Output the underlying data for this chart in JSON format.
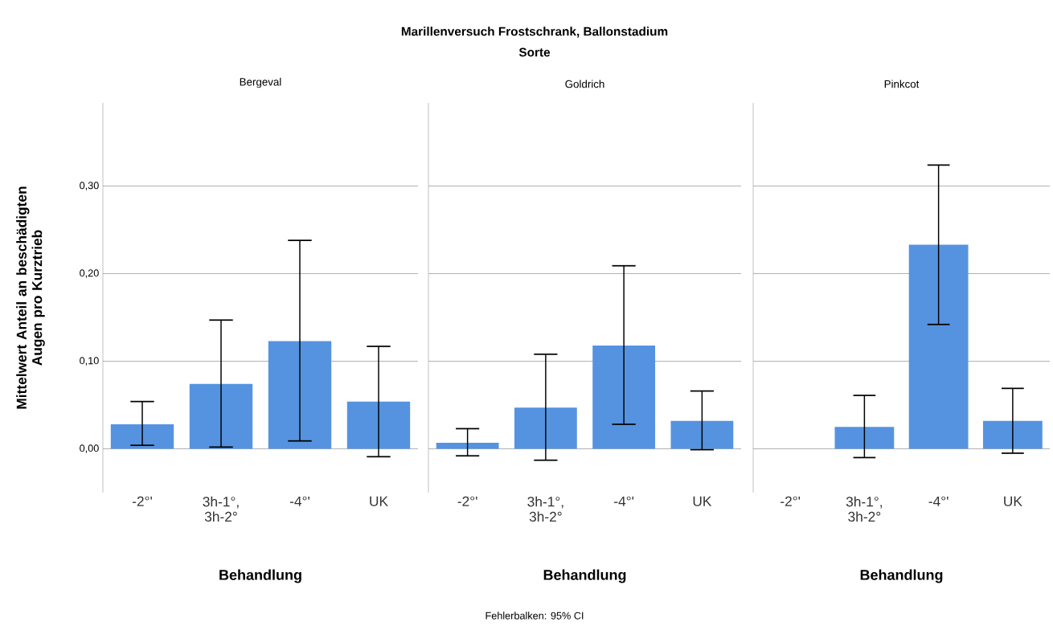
{
  "chart_data": [
    {
      "type": "bar",
      "title": "Bergeval",
      "xlabel": "Behandlung",
      "ylabel": "Mittelwert Anteil an beschädigten Augen pro Kurztrieb",
      "annotations": [
        "Marillenversuch Frostschrank, Ballonstadium",
        "Sorte",
        "Fehlerbalken: 95% CI"
      ],
      "categories": [
        "-2°'",
        "3h-1°, 3h-2°",
        "-4°'",
        "UK"
      ],
      "values": [
        0.028,
        0.074,
        0.123,
        0.054
      ],
      "color": "#5593e0",
      "errors": [
        [
          0.004,
          0.054
        ],
        [
          0.002,
          0.147
        ],
        [
          0.009,
          0.238
        ],
        [
          -0.009,
          0.117
        ]
      ],
      "ylim": [
        -0.05,
        0.395
      ],
      "yticks": [
        {
          "value": 0,
          "label": "0,00"
        },
        {
          "value": 0.1,
          "label": "0,10"
        },
        {
          "value": 0.2,
          "label": "0,20"
        },
        {
          "value": 0.3,
          "label": "0,30"
        }
      ],
      "grid": "y"
    },
    {
      "type": "bar",
      "title": "Goldrich",
      "xlabel": "Behandlung",
      "categories": [
        "-2°'",
        "3h-1°, 3h-2°",
        "-4°'",
        "UK"
      ],
      "values": [
        0.007,
        0.047,
        0.118,
        0.032
      ],
      "color": "#5593e0",
      "errors": [
        [
          -0.008,
          0.023
        ],
        [
          -0.013,
          0.108
        ],
        [
          0.028,
          0.209
        ],
        [
          -0.001,
          0.066
        ]
      ],
      "ylim": [
        -0.05,
        0.395
      ],
      "yticks": [
        {
          "value": 0,
          "label": null
        },
        {
          "value": 0.1,
          "label": null
        },
        {
          "value": 0.2,
          "label": null
        },
        {
          "value": 0.3,
          "label": null
        }
      ],
      "grid": "y",
      "tick_labels": "x"
    },
    {
      "type": "bar",
      "title": "Pinkcot",
      "xlabel": "Behandlung",
      "categories": [
        "-2°'",
        "3h-1°, 3h-2°",
        "-4°'",
        "UK"
      ],
      "values": [
        null,
        0.025,
        0.233,
        0.032
      ],
      "color": "#5593e0",
      "errors": [
        null,
        [
          -0.01,
          0.061
        ],
        [
          0.142,
          0.324
        ],
        [
          -0.005,
          0.069
        ]
      ],
      "ylim": [
        -0.05,
        0.395
      ],
      "yticks": [
        {
          "value": 0,
          "label": null
        },
        {
          "value": 0.1,
          "label": null
        },
        {
          "value": 0.2,
          "label": null
        },
        {
          "value": 0.3,
          "label": null
        }
      ],
      "grid": "y",
      "tick_labels": "x"
    }
  ]
}
